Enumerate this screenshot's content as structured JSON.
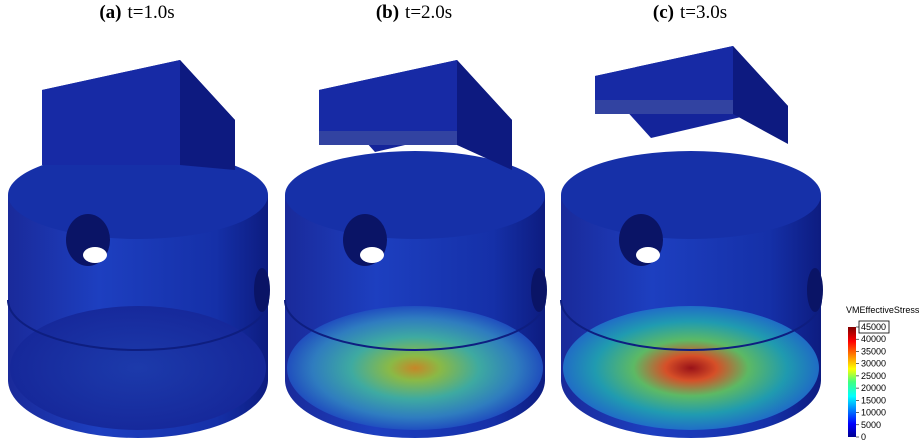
{
  "panels": [
    {
      "label": "(a)",
      "caption": "t=1.0s"
    },
    {
      "label": "(b)",
      "caption": "t=2.0s"
    },
    {
      "label": "(c)",
      "caption": "t=3.0s"
    }
  ],
  "colorbar": {
    "title": "VMEffectiveStress",
    "range": [
      0,
      45000
    ],
    "ticks": [
      45000,
      40000,
      35000,
      30000,
      25000,
      20000,
      15000,
      10000,
      5000,
      0
    ]
  }
}
